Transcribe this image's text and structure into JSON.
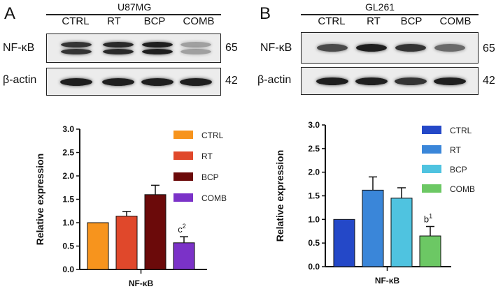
{
  "panels": [
    {
      "letter": "A",
      "cell_line": "U87MG",
      "lanes": [
        "CTRL",
        "RT",
        "BCP",
        "COMB"
      ],
      "blots": [
        {
          "protein": "NF-κB",
          "mw": "65",
          "intensity": [
            0.85,
            0.9,
            0.95,
            0.35
          ],
          "double_band": true
        },
        {
          "protein": "β-actin",
          "mw": "42",
          "intensity": [
            0.95,
            0.95,
            0.95,
            0.95
          ],
          "double_band": false
        }
      ]
    },
    {
      "letter": "B",
      "cell_line": "GL261",
      "lanes": [
        "CTRL",
        "RT",
        "BCP",
        "COMB"
      ],
      "blots": [
        {
          "protein": "NF-κB",
          "mw": "65",
          "intensity": [
            0.75,
            0.95,
            0.85,
            0.6
          ],
          "double_band": false
        },
        {
          "protein": "β-actin",
          "mw": "42",
          "intensity": [
            0.95,
            0.95,
            0.85,
            0.95
          ],
          "double_band": false
        }
      ]
    }
  ],
  "chart_data": [
    {
      "type": "bar",
      "categories": [
        "CTRL",
        "RT",
        "BCP",
        "COMB"
      ],
      "values": [
        1.0,
        1.14,
        1.6,
        0.57
      ],
      "errors": [
        0,
        0.1,
        0.2,
        0.13
      ],
      "annotations": [
        "",
        "",
        "",
        "c2"
      ],
      "colors": [
        "#f7941d",
        "#e0482b",
        "#6b0a0a",
        "#7b32c8"
      ],
      "xlabel": "NF-κB",
      "ylabel": "Relative expression",
      "ylim": [
        0,
        3.0
      ],
      "yticks": [
        "0.0",
        "0.5",
        "1.0",
        "1.5",
        "2.0",
        "2.5",
        "3.0"
      ],
      "legend_position": "right",
      "grid": false
    },
    {
      "type": "bar",
      "categories": [
        "CTRL",
        "RT",
        "BCP",
        "COMB"
      ],
      "values": [
        1.0,
        1.62,
        1.45,
        0.65
      ],
      "errors": [
        0,
        0.28,
        0.22,
        0.2
      ],
      "annotations": [
        "",
        "",
        "",
        "b1"
      ],
      "colors": [
        "#2448c8",
        "#3a86d9",
        "#4fc3e0",
        "#6cc864"
      ],
      "xlabel": "NF-κB",
      "ylabel": "Relative expression",
      "ylim": [
        0,
        3.0
      ],
      "yticks": [
        "0.0",
        "0.5",
        "1.0",
        "1.5",
        "2.0",
        "2.5",
        "3.0"
      ],
      "legend_position": "right",
      "grid": false
    }
  ]
}
